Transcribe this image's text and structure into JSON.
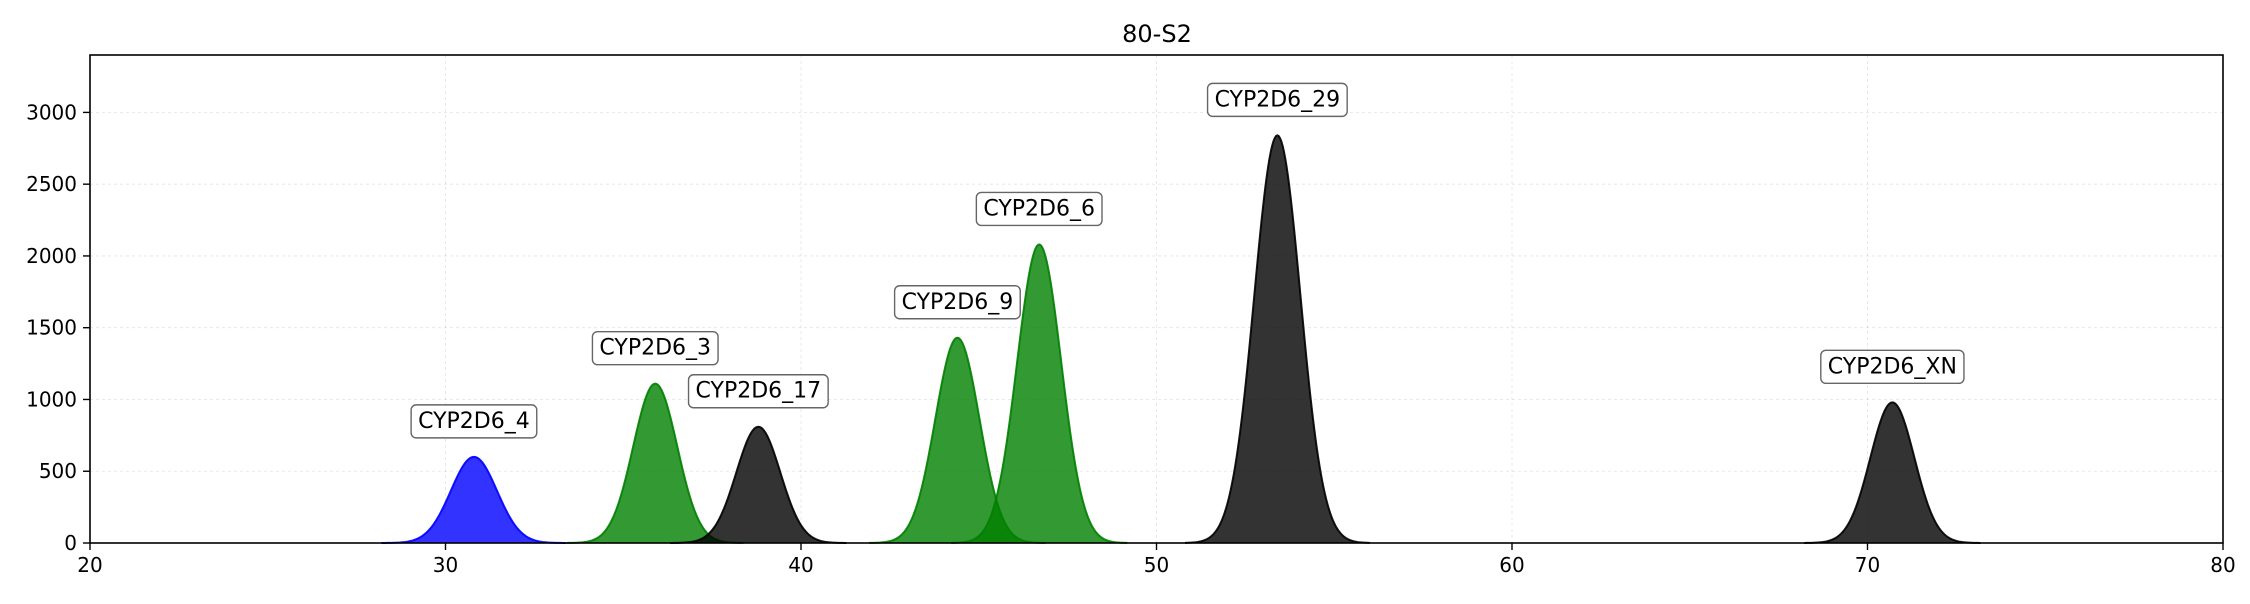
{
  "chart_data": {
    "type": "area",
    "title": "80-S2",
    "xlabel": "",
    "ylabel": "",
    "xlim": [
      20,
      80
    ],
    "ylim": [
      0,
      3400
    ],
    "x_ticks": [
      20,
      30,
      40,
      50,
      60,
      70,
      80
    ],
    "y_ticks": [
      0,
      500,
      1000,
      1500,
      2000,
      2500,
      3000
    ],
    "grid": true,
    "peaks": [
      {
        "label": "CYP2D6_4",
        "center": 30.8,
        "height": 600,
        "sigma": 0.65,
        "color": "#0000ff"
      },
      {
        "label": "CYP2D6_3",
        "center": 35.9,
        "height": 1110,
        "sigma": 0.62,
        "color": "#008000"
      },
      {
        "label": "CYP2D6_17",
        "center": 38.8,
        "height": 810,
        "sigma": 0.62,
        "color": "#000000"
      },
      {
        "label": "CYP2D6_9",
        "center": 44.4,
        "height": 1430,
        "sigma": 0.62,
        "color": "#008000"
      },
      {
        "label": "CYP2D6_6",
        "center": 46.7,
        "height": 2080,
        "sigma": 0.62,
        "color": "#008000"
      },
      {
        "label": "CYP2D6_29",
        "center": 53.4,
        "height": 2840,
        "sigma": 0.65,
        "color": "#000000"
      },
      {
        "label": "CYP2D6_XN",
        "center": 70.7,
        "height": 980,
        "sigma": 0.62,
        "color": "#000000"
      }
    ]
  }
}
